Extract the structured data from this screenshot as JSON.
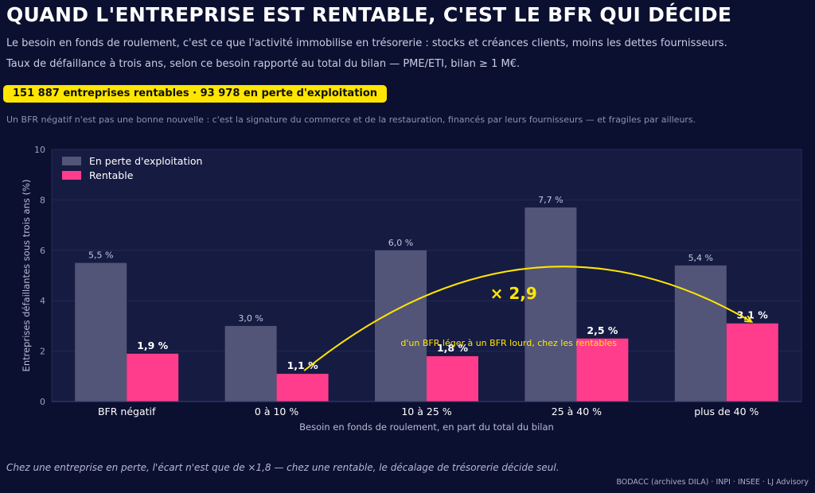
{
  "title": "QUAND L'ENTREPRISE EST RENTABLE, C'EST LE BFR QUI DÉCIDE",
  "subtitle_1": "Le besoin en fonds de roulement, c'est ce que l'activité immobilise en trésorerie : stocks et créances clients, moins les dettes fournisseurs.",
  "subtitle_2": "Taux de défaillance à trois ans, selon ce besoin rapporté au total du bilan — PME/ETI, bilan ≥ 1 M€.",
  "badge": "151 887 entreprises rentables  ·  93 978 en perte d'exploitation",
  "note": "Un BFR négatif n'est pas une bonne nouvelle : c'est la signature du commerce et de la restauration, financés par leurs fournisseurs — et fragiles par ailleurs.",
  "footer_note": "Chez une entreprise en perte, l'écart n'est que de ×1,8 — chez une rentable, le décalage de trésorerie décide seul.",
  "source": "BODACC (archives DILA) · INPI · INSEE  ·  LJ Advisory",
  "colors": {
    "background": "#0c1030",
    "plot_background": "#161b42",
    "loss_series": "#525578",
    "profitable_series": "#ff3d8c",
    "accent": "#ffe600"
  },
  "chart_data": {
    "type": "bar",
    "xlabel": "Besoin en fonds de roulement, en part du total du bilan",
    "ylabel": "Entreprises défaillantes sous trois ans (%)",
    "ylim": [
      0,
      10
    ],
    "yticks": [
      0,
      2,
      4,
      6,
      8,
      10
    ],
    "grid": true,
    "legend_position": "top-left",
    "categories": [
      "BFR négatif",
      "0 à 10 %",
      "10 à 25 %",
      "25 à 40 %",
      "plus de 40 %"
    ],
    "series": [
      {
        "name": "En perte d'exploitation",
        "color": "#525578",
        "values": [
          5.5,
          3.0,
          6.0,
          7.7,
          5.4
        ],
        "labels": [
          "5,5 %",
          "3,0 %",
          "6,0 %",
          "7,7 %",
          "5,4 %"
        ]
      },
      {
        "name": "Rentable",
        "color": "#ff3d8c",
        "values": [
          1.9,
          1.1,
          1.8,
          2.5,
          3.1
        ],
        "labels": [
          "1,9 %",
          "1,1 %",
          "1,8 %",
          "2,5 %",
          "3,1 %"
        ]
      }
    ],
    "annotation": {
      "text": "× 2,9",
      "caption": "d'un BFR léger à un BFR lourd, chez les rentables",
      "from_category": "0 à 10 %",
      "to_category": "plus de 40 %",
      "series": "Rentable"
    }
  }
}
